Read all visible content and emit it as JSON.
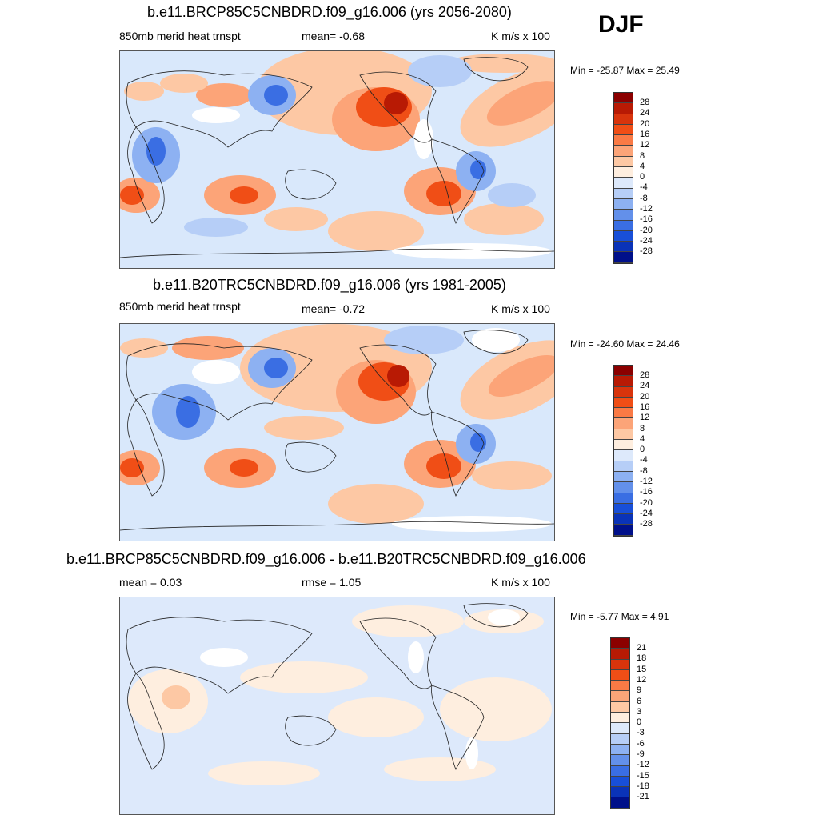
{
  "season": "DJF",
  "panels": [
    {
      "title": "b.e11.BRCP85C5CNBDRD.f09_g16.006 (yrs 2056-2080)",
      "left_label": "850mb merid heat trnspt",
      "center_label": "mean=  -0.68",
      "right_label": "K m/s x 100",
      "minmax": "Min = -25.87 Max =  25.49",
      "colorbar_levels": [
        "28",
        "24",
        "20",
        "16",
        "12",
        "8",
        "4",
        "0",
        "-4",
        "-8",
        "-12",
        "-16",
        "-20",
        "-24",
        "-28"
      ]
    },
    {
      "title": "b.e11.B20TRC5CNBDRD.f09_g16.006 (yrs 1981-2005)",
      "left_label": "850mb merid heat trnspt",
      "center_label": "mean=  -0.72",
      "right_label": "K m/s x 100",
      "minmax": "Min = -24.60 Max =  24.46",
      "colorbar_levels": [
        "28",
        "24",
        "20",
        "16",
        "12",
        "8",
        "4",
        "0",
        "-4",
        "-8",
        "-12",
        "-16",
        "-20",
        "-24",
        "-28"
      ]
    },
    {
      "title": "b.e11.BRCP85C5CNBDRD.f09_g16.006 - b.e11.B20TRC5CNBDRD.f09_g16.006",
      "left_label": "mean =   0.03",
      "center_label": "rmse =   1.05",
      "right_label": "K m/s x 100",
      "minmax": "Min =  -5.77 Max =   4.91",
      "colorbar_levels": [
        "21",
        "18",
        "15",
        "12",
        "9",
        "6",
        "3",
        "0",
        "-3",
        "-6",
        "-9",
        "-12",
        "-15",
        "-18",
        "-21"
      ]
    }
  ],
  "colors": {
    "colorbar": [
      "#8b0000",
      "#b81a04",
      "#d8340c",
      "#f04e16",
      "#fa7a45",
      "#fca478",
      "#fdc8a4",
      "#feeedf",
      "#dde9fb",
      "#b6cef7",
      "#8db1f2",
      "#6390ea",
      "#3a6ee3",
      "#184fd8",
      "#0a33b8",
      "#00108a"
    ]
  }
}
